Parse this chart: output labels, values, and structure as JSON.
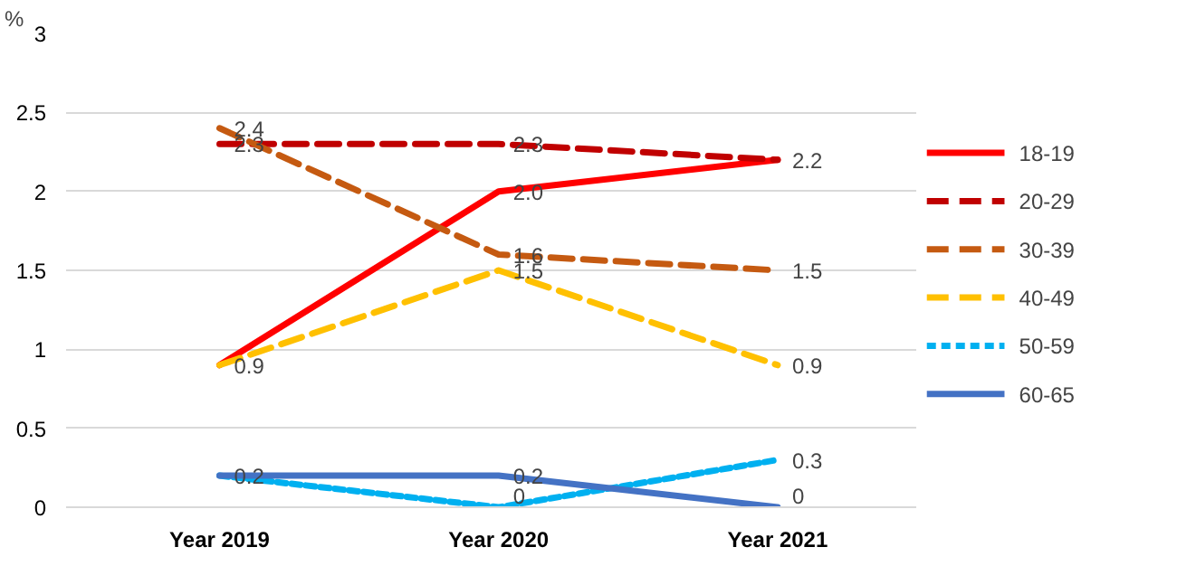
{
  "chart_data": {
    "type": "line",
    "ylabel": "%",
    "categories": [
      "Year 2019",
      "Year 2020",
      "Year 2021"
    ],
    "ylim": [
      0,
      3
    ],
    "yticks": [
      0,
      0.5,
      1,
      1.5,
      2,
      2.5,
      3
    ],
    "grid": "y",
    "legend": "right",
    "series": [
      {
        "name": "18-19",
        "color": "#ff0000",
        "line_style": "solid",
        "values": [
          0.9,
          2.0,
          2.2
        ],
        "value_labels": [
          null,
          "2.0",
          "2.2"
        ]
      },
      {
        "name": "20-29",
        "color": "#c00000",
        "line_style": "dashed",
        "values": [
          2.3,
          2.3,
          2.2
        ],
        "value_labels": [
          "2.3",
          "2.3",
          null
        ]
      },
      {
        "name": "30-39",
        "color": "#c55a11",
        "line_style": "dashed",
        "values": [
          2.4,
          1.6,
          1.5
        ],
        "value_labels": [
          "2.4",
          "1.6",
          "1.5"
        ]
      },
      {
        "name": "40-49",
        "color": "#ffc000",
        "line_style": "dashed",
        "values": [
          0.9,
          1.5,
          0.9
        ],
        "value_labels": [
          "0.9",
          "1.5",
          "0.9"
        ]
      },
      {
        "name": "50-59",
        "color": "#00b0f0",
        "line_style": "dotted",
        "values": [
          0.2,
          0,
          0.3
        ],
        "value_labels": [
          null,
          "0",
          "0.3"
        ]
      },
      {
        "name": "60-65",
        "color": "#4472c4",
        "line_style": "solid",
        "values": [
          0.2,
          0.2,
          0
        ],
        "value_labels": [
          "0.2",
          "0.2",
          "0"
        ]
      }
    ]
  }
}
